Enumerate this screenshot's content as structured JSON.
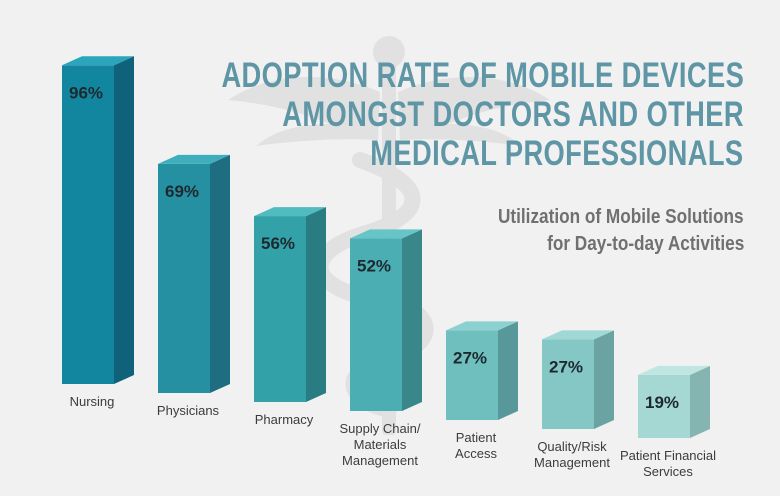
{
  "chart_data": {
    "type": "bar",
    "title_lines": [
      "ADOPTION RATE OF MOBILE DEVICES",
      "AMONGST DOCTORS AND OTHER",
      "MEDICAL PROFESSIONALS"
    ],
    "subtitle_lines": [
      "Utilization of Mobile Solutions",
      "for Day-to-day Activities"
    ],
    "categories": [
      [
        "Nursing"
      ],
      [
        "Physicians"
      ],
      [
        "Pharmacy"
      ],
      [
        "Supply Chain/",
        "Materials",
        "Management"
      ],
      [
        "Patient",
        "Access"
      ],
      [
        "Quality/Risk",
        "Management"
      ],
      [
        "Patient Financial",
        "Services"
      ]
    ],
    "values": [
      96,
      69,
      56,
      52,
      27,
      27,
      19
    ],
    "value_labels": [
      "96%",
      "69%",
      "56%",
      "52%",
      "27%",
      "27%",
      "19%"
    ],
    "value_unit": "%",
    "ylim": [
      0,
      100
    ],
    "grid": false,
    "legend": "none",
    "colors": {
      "background": "#f1f1f1",
      "title": "#5f96a6",
      "subtitle": "#707070",
      "label": "#3c3c3c",
      "value_label": "#1c2a30",
      "bar_front": [
        "#13869f",
        "#2590a2",
        "#33a1a8",
        "#4aaeb2",
        "#6fbfbf",
        "#84c7c4",
        "#a6d8d3"
      ],
      "bar_side": [
        "#10627a",
        "#1e6d80",
        "#2a7c83",
        "#3a878a",
        "#58989a",
        "#6aa3a2",
        "#86b4b0"
      ],
      "bar_top": [
        "#2aa5bb",
        "#3eaebc",
        "#50bcc0",
        "#66c5c7",
        "#8cd1d0",
        "#a0d8d5",
        "#c0e6e2"
      ]
    }
  }
}
